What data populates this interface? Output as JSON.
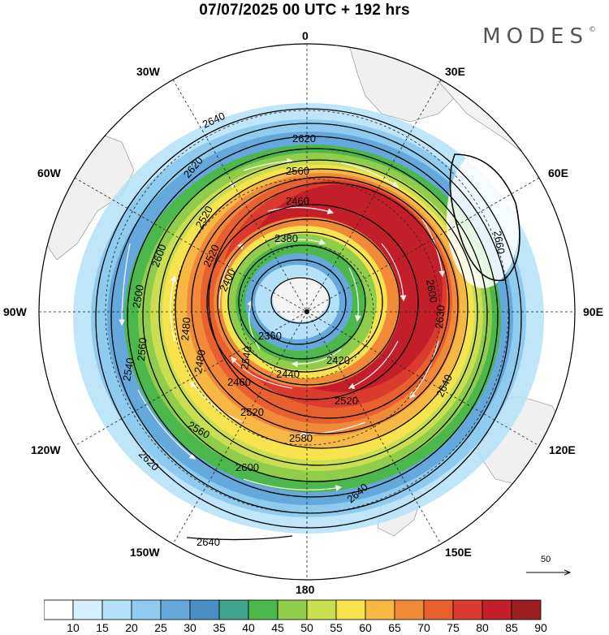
{
  "header": {
    "title": "07/07/2025  00 UTC  + 192 hrs",
    "brand": "MODES",
    "brand_mark": "©"
  },
  "longitudes": {
    "n0": "0",
    "e30": "30E",
    "e60": "60E",
    "e90": "90E",
    "e120": "120E",
    "e150": "150E",
    "s180": "180",
    "w150": "150W",
    "w120": "120W",
    "w90": "90W",
    "w60": "60W",
    "w30": "30W"
  },
  "contour_labels": [
    "2640",
    "2620",
    "2620",
    "2560",
    "2460",
    "2520",
    "2600",
    "2500",
    "2400",
    "2380",
    "2480",
    "2560",
    "2360",
    "2540",
    "2520",
    "2480",
    "2540",
    "2460",
    "2440",
    "2420",
    "2520",
    "2580",
    "2560",
    "2520",
    "2600",
    "2620",
    "2640",
    "2640",
    "2660",
    "2600",
    "2630",
    "2640"
  ],
  "vector_reference": {
    "value": "50"
  },
  "colorbar": {
    "ticks": [
      "10",
      "15",
      "20",
      "25",
      "30",
      "35",
      "40",
      "45",
      "50",
      "55",
      "60",
      "65",
      "70",
      "75",
      "80",
      "85",
      "90"
    ],
    "colors": [
      "#ffffff",
      "#d7effc",
      "#b4e1f8",
      "#8fcbee",
      "#65a9dc",
      "#4a8ec6",
      "#3fa58c",
      "#4cb84c",
      "#8fcd4b",
      "#c9df4f",
      "#f6e34d",
      "#f7b843",
      "#f08a38",
      "#e9602f",
      "#da3b2e",
      "#c31f2a",
      "#9c1e22"
    ]
  }
}
